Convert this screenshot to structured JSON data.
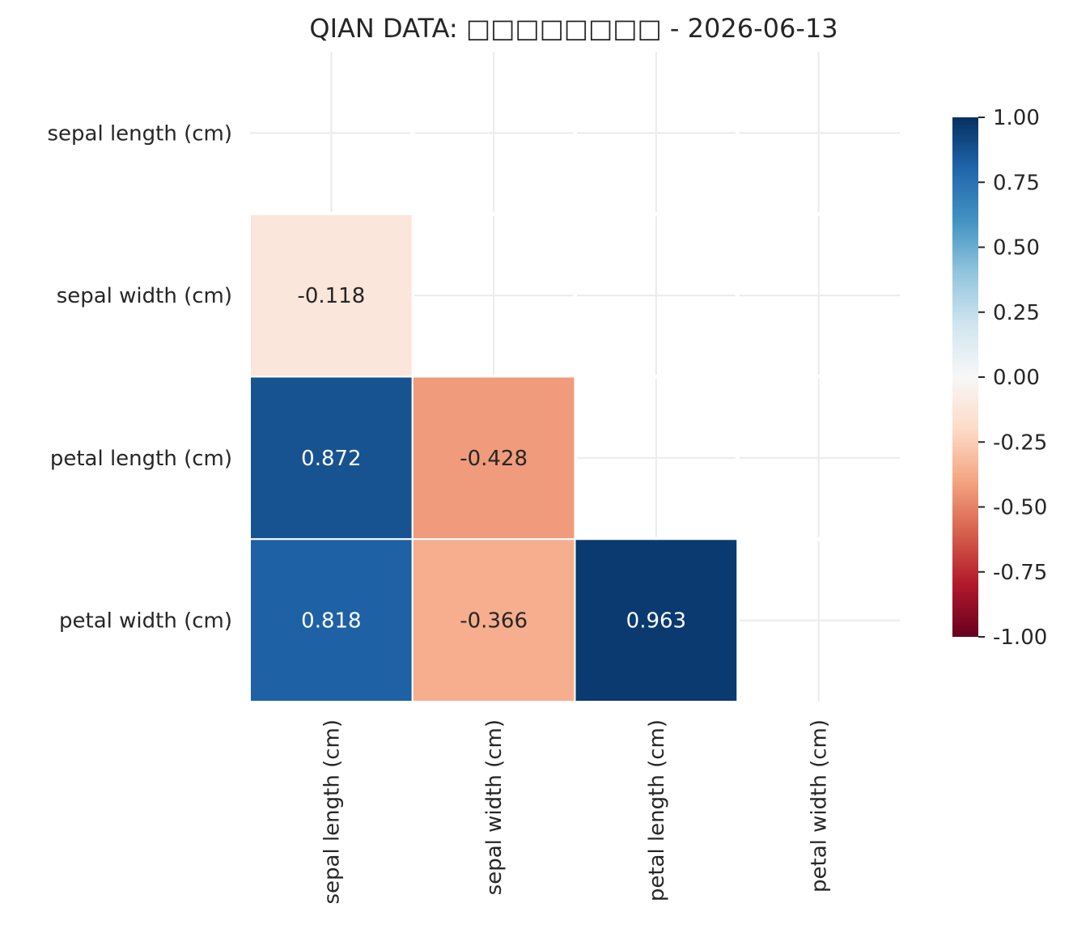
{
  "chart_data": {
    "type": "heatmap",
    "title": "QIAN DATA: □□□□□□□□ - 2026-06-13",
    "row_labels": [
      "sepal length (cm)",
      "sepal width (cm)",
      "petal length (cm)",
      "petal width (cm)"
    ],
    "col_labels": [
      "sepal length (cm)",
      "sepal width (cm)",
      "petal length (cm)",
      "petal width (cm)"
    ],
    "mask": "upper triangle including diagonal",
    "cells": [
      {
        "row": 1,
        "col": 0,
        "value": -0.118,
        "label": "-0.118"
      },
      {
        "row": 2,
        "col": 0,
        "value": 0.872,
        "label": "0.872"
      },
      {
        "row": 2,
        "col": 1,
        "value": -0.428,
        "label": "-0.428"
      },
      {
        "row": 3,
        "col": 0,
        "value": 0.818,
        "label": "0.818"
      },
      {
        "row": 3,
        "col": 1,
        "value": -0.366,
        "label": "-0.366"
      },
      {
        "row": 3,
        "col": 2,
        "value": 0.963,
        "label": "0.963"
      }
    ],
    "colorbar": {
      "colormap": "RdBu",
      "vmin": -1.0,
      "vmax": 1.0,
      "ticks": [
        {
          "value": 1.0,
          "label": "1.00"
        },
        {
          "value": 0.75,
          "label": "0.75"
        },
        {
          "value": 0.5,
          "label": "0.50"
        },
        {
          "value": 0.25,
          "label": "0.25"
        },
        {
          "value": 0.0,
          "label": "0.00"
        },
        {
          "value": -0.25,
          "label": "-0.25"
        },
        {
          "value": -0.5,
          "label": "-0.50"
        },
        {
          "value": -0.75,
          "label": "-0.75"
        },
        {
          "value": -1.0,
          "label": "-1.00"
        }
      ]
    },
    "grid": true,
    "colors": {
      "text_dark": "#262626",
      "text_light": "#ffffff",
      "grid": "#ebebeb",
      "cell_border": "#ffffff"
    }
  }
}
